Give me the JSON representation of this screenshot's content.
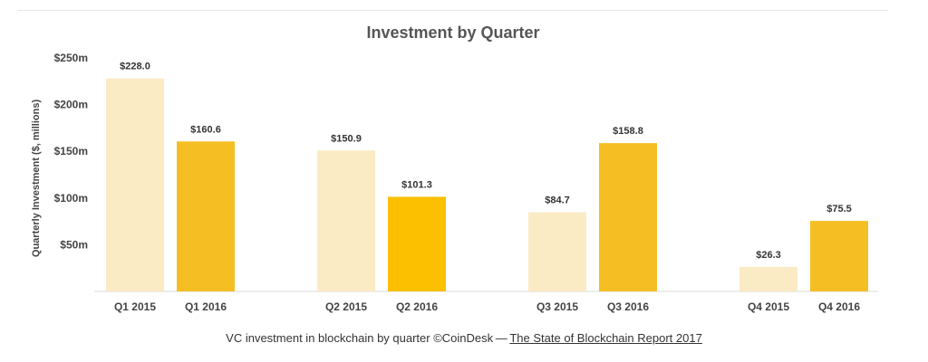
{
  "chart_data": {
    "type": "bar",
    "title": "Investment by Quarter",
    "ylabel": "Quarterly Investment ($, millions)",
    "xlabel": "",
    "ylim": [
      0,
      250
    ],
    "y_ticks": [
      {
        "value": 50,
        "label": "$50m"
      },
      {
        "value": 100,
        "label": "$100m"
      },
      {
        "value": 150,
        "label": "$150m"
      },
      {
        "value": 200,
        "label": "$200m"
      },
      {
        "value": 250,
        "label": "$250m"
      }
    ],
    "grid": false,
    "legend": "none",
    "bars": [
      {
        "category": "Q1 2015",
        "value": 228.0,
        "label": "$228.0",
        "color": "#fbebc5"
      },
      {
        "category": "Q1 2016",
        "value": 160.6,
        "label": "$160.6",
        "color": "#f5bf24"
      },
      {
        "category": "Q2 2015",
        "value": 150.9,
        "label": "$150.9",
        "color": "#fbebc5"
      },
      {
        "category": "Q2 2016",
        "value": 101.3,
        "label": "$101.3",
        "color": "#fcc000"
      },
      {
        "category": "Q3 2015",
        "value": 84.7,
        "label": "$84.7",
        "color": "#fbebc5"
      },
      {
        "category": "Q3 2016",
        "value": 158.8,
        "label": "$158.8",
        "color": "#f5bf24"
      },
      {
        "category": "Q4 2015",
        "value": 26.3,
        "label": "$26.3",
        "color": "#fbebc5"
      },
      {
        "category": "Q4 2016",
        "value": 75.5,
        "label": "$75.5",
        "color": "#f5bf24"
      }
    ]
  },
  "caption": {
    "text": "VC investment in blockchain by quarter ©CoinDesk — ",
    "link": "The State of Blockchain Report 2017"
  }
}
